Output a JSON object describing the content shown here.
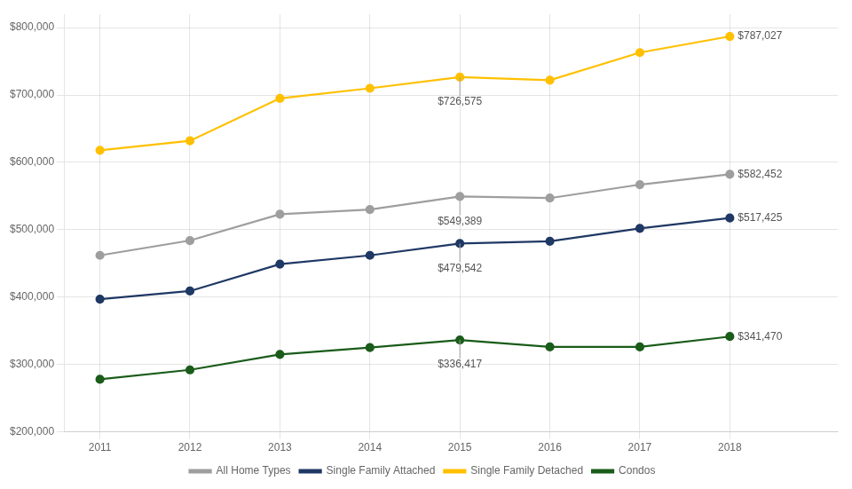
{
  "chart_data": {
    "type": "line",
    "x": [
      2011,
      2012,
      2013,
      2014,
      2015,
      2016,
      2017,
      2018
    ],
    "series": [
      {
        "name": "All Home Types",
        "color": "#9E9E9E",
        "values": [
          462000,
          484000,
          523000,
          530000,
          549389,
          547000,
          567000,
          582452
        ]
      },
      {
        "name": "Single Family Attached",
        "color": "#1F3864",
        "values": [
          397000,
          409000,
          449000,
          462000,
          479542,
          483000,
          502000,
          517425
        ]
      },
      {
        "name": "Single Family Detached",
        "color": "#FFC000",
        "values": [
          618000,
          632000,
          695000,
          710000,
          726575,
          722000,
          763000,
          787027
        ]
      },
      {
        "name": "Condos",
        "color": "#1A5C1A",
        "values": [
          278000,
          292000,
          315000,
          325000,
          336417,
          326000,
          326000,
          341470
        ]
      }
    ],
    "xlim": [
      2010.6,
      2019.2
    ],
    "xticks": [
      2011,
      2012,
      2013,
      2014,
      2015,
      2016,
      2017,
      2018
    ],
    "ylim": [
      200000,
      820000
    ],
    "yticks": [
      {
        "value": 200000,
        "label": "$200,000"
      },
      {
        "value": 300000,
        "label": "$300,000"
      },
      {
        "value": 400000,
        "label": "$400,000"
      },
      {
        "value": 500000,
        "label": "$500,000"
      },
      {
        "value": 600000,
        "label": "$600,000"
      },
      {
        "value": 700000,
        "label": "$700,000"
      },
      {
        "value": 800000,
        "label": "$800,000"
      }
    ],
    "grid": true,
    "legend": "bottom",
    "marker": "circle",
    "annotations": [
      {
        "text": "$726,575",
        "x": 2015,
        "y": 726575
      },
      {
        "text": "$549,389",
        "x": 2015,
        "y": 549389
      },
      {
        "text": "$479,542",
        "x": 2015,
        "y": 479542
      },
      {
        "text": "$336,417",
        "x": 2015,
        "y": 336417
      },
      {
        "text": "$787,027",
        "x": 2018,
        "y": 787027
      },
      {
        "text": "$582,452",
        "x": 2018,
        "y": 582452
      },
      {
        "text": "$517,425",
        "x": 2018,
        "y": 517425
      },
      {
        "text": "$341,470",
        "x": 2018,
        "y": 341470
      }
    ]
  }
}
